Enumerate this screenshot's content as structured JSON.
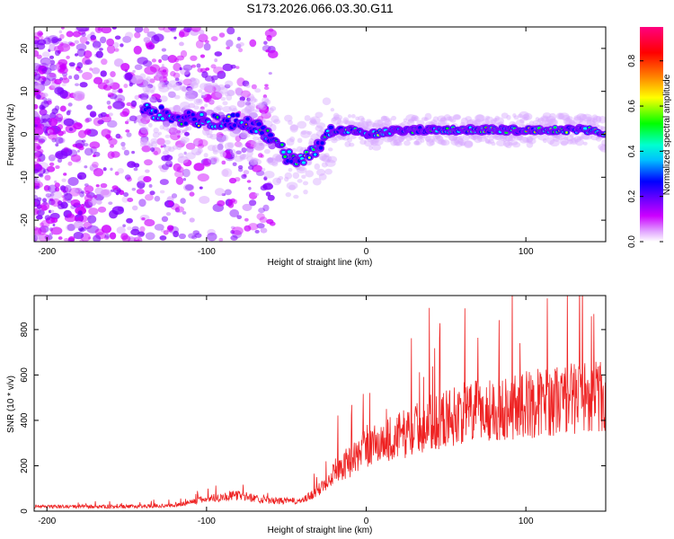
{
  "chart_data": [
    {
      "type": "heatmap",
      "title": "S173.2026.066.03.30.G11",
      "xlabel": "Height of straight line (km)",
      "ylabel": "Frequency (Hz)",
      "xlim": [
        -208,
        150
      ],
      "ylim": [
        -25,
        25
      ],
      "xticks": [
        -200,
        -100,
        0,
        100
      ],
      "xtick_labels": [
        "-200",
        "-100",
        "0",
        "100"
      ],
      "yticks": [
        -20,
        -10,
        0,
        10,
        20
      ],
      "ytick_labels": [
        "-20",
        "-10",
        "0",
        "10",
        "20"
      ],
      "colorbar": {
        "label": "Normalized spectral amplitude",
        "range": [
          0,
          0.95
        ],
        "ticks": [
          0.0,
          0.2,
          0.4,
          0.6,
          0.8
        ],
        "tick_labels": [
          "0.0",
          "0.2",
          "0.4",
          "0.6",
          "0.8"
        ],
        "colors": [
          "#ffffff",
          "#cc00ff",
          "#8000ff",
          "#0000ff",
          "#00ffff",
          "#00ff00",
          "#ffff00",
          "#ff8000",
          "#ff0000",
          "#ff0080"
        ]
      },
      "ridge": {
        "x": [
          -140,
          -120,
          -100,
          -80,
          -70,
          -60,
          -50,
          -40,
          -30,
          -20,
          -10,
          0,
          20,
          40,
          60,
          80,
          100,
          120,
          140,
          150
        ],
        "freq": [
          6,
          4,
          3,
          3,
          2,
          -1,
          -5,
          -6,
          -3,
          1,
          1,
          0,
          1,
          1,
          1,
          1,
          1,
          1,
          1,
          0
        ]
      }
    },
    {
      "type": "line",
      "xlabel": "Height of straight line (km)",
      "ylabel": "SNR (10 * v/v)",
      "xlim": [
        -208,
        150
      ],
      "ylim": [
        0,
        950
      ],
      "xticks": [
        -200,
        -100,
        0,
        100
      ],
      "xtick_labels": [
        "-200",
        "-100",
        "0",
        "100"
      ],
      "yticks": [
        0,
        200,
        400,
        600,
        800
      ],
      "ytick_labels": [
        "0",
        "200",
        "400",
        "600",
        "800"
      ],
      "color": "#ee2222",
      "trend": {
        "x": [
          -208,
          -150,
          -120,
          -100,
          -80,
          -60,
          -40,
          -30,
          -20,
          -10,
          0,
          20,
          40,
          60,
          80,
          100,
          120,
          140,
          150
        ],
        "snr": [
          20,
          20,
          25,
          55,
          70,
          45,
          45,
          90,
          180,
          220,
          280,
          330,
          390,
          430,
          450,
          470,
          490,
          510,
          500
        ]
      }
    }
  ]
}
